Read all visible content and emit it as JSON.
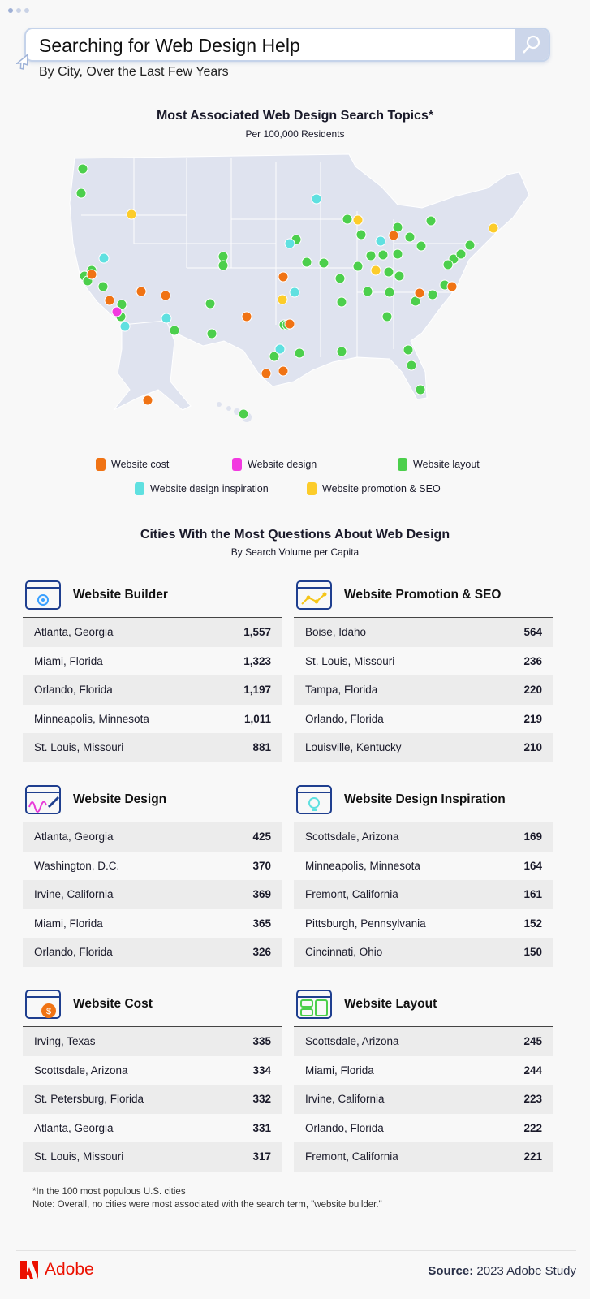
{
  "header": {
    "title": "Searching for Web Design Help",
    "subtitle": "By City, Over the Last Few Years"
  },
  "map": {
    "title": "Most Associated Web Design Search Topics*",
    "subtitle": "Per 100,000 Residents",
    "legend": [
      {
        "key": "cost",
        "label": "Website cost",
        "color": "#f07314"
      },
      {
        "key": "design",
        "label": "Website design",
        "color": "#f23ae0"
      },
      {
        "key": "layout",
        "label": "Website layout",
        "color": "#4ccf4c"
      },
      {
        "key": "inspiration",
        "label": "Website design inspiration",
        "color": "#5fe0e0"
      },
      {
        "key": "seo",
        "label": "Website promotion & SEO",
        "color": "#fccc2a"
      }
    ]
  },
  "tables_section": {
    "title": "Cities With the Most Questions About Web Design",
    "subtitle": "By Search Volume per Capita"
  },
  "tables": [
    {
      "title": "Website Builder",
      "rows": [
        [
          "Atlanta, Georgia",
          "1,557"
        ],
        [
          "Miami, Florida",
          "1,323"
        ],
        [
          "Orlando, Florida",
          "1,197"
        ],
        [
          "Minneapolis, Minnesota",
          "1,011"
        ],
        [
          "St. Louis, Missouri",
          "881"
        ]
      ]
    },
    {
      "title": "Website Promotion & SEO",
      "rows": [
        [
          "Boise, Idaho",
          "564"
        ],
        [
          "St. Louis, Missouri",
          "236"
        ],
        [
          "Tampa, Florida",
          "220"
        ],
        [
          "Orlando, Florida",
          "219"
        ],
        [
          "Louisville, Kentucky",
          "210"
        ]
      ]
    },
    {
      "title": "Website Design",
      "rows": [
        [
          "Atlanta, Georgia",
          "425"
        ],
        [
          "Washington, D.C.",
          "370"
        ],
        [
          "Irvine, California",
          "369"
        ],
        [
          "Miami, Florida",
          "365"
        ],
        [
          "Orlando, Florida",
          "326"
        ]
      ]
    },
    {
      "title": "Website Design Inspiration",
      "rows": [
        [
          "Scottsdale, Arizona",
          "169"
        ],
        [
          "Minneapolis, Minnesota",
          "164"
        ],
        [
          "Fremont, California",
          "161"
        ],
        [
          "Pittsburgh, Pennsylvania",
          "152"
        ],
        [
          "Cincinnati, Ohio",
          "150"
        ]
      ]
    },
    {
      "title": "Website Cost",
      "rows": [
        [
          "Irving, Texas",
          "335"
        ],
        [
          "Scottsdale, Arizona",
          "334"
        ],
        [
          "St. Petersburg, Florida",
          "332"
        ],
        [
          "Atlanta, Georgia",
          "331"
        ],
        [
          "St. Louis, Missouri",
          "317"
        ]
      ]
    },
    {
      "title": "Website Layout",
      "rows": [
        [
          "Scottsdale, Arizona",
          "245"
        ],
        [
          "Miami, Florida",
          "244"
        ],
        [
          "Irvine, California",
          "223"
        ],
        [
          "Orlando, Florida",
          "222"
        ],
        [
          "Fremont, California",
          "221"
        ]
      ]
    }
  ],
  "footnotes": {
    "asterisk": "*In the 100 most populous U.S. cities",
    "note": "Note: Overall, no cities were most associated with the search term, \"website builder.\""
  },
  "footer": {
    "brand": "Adobe",
    "source_label": "Source:",
    "source_value": "2023 Adobe Study"
  }
}
